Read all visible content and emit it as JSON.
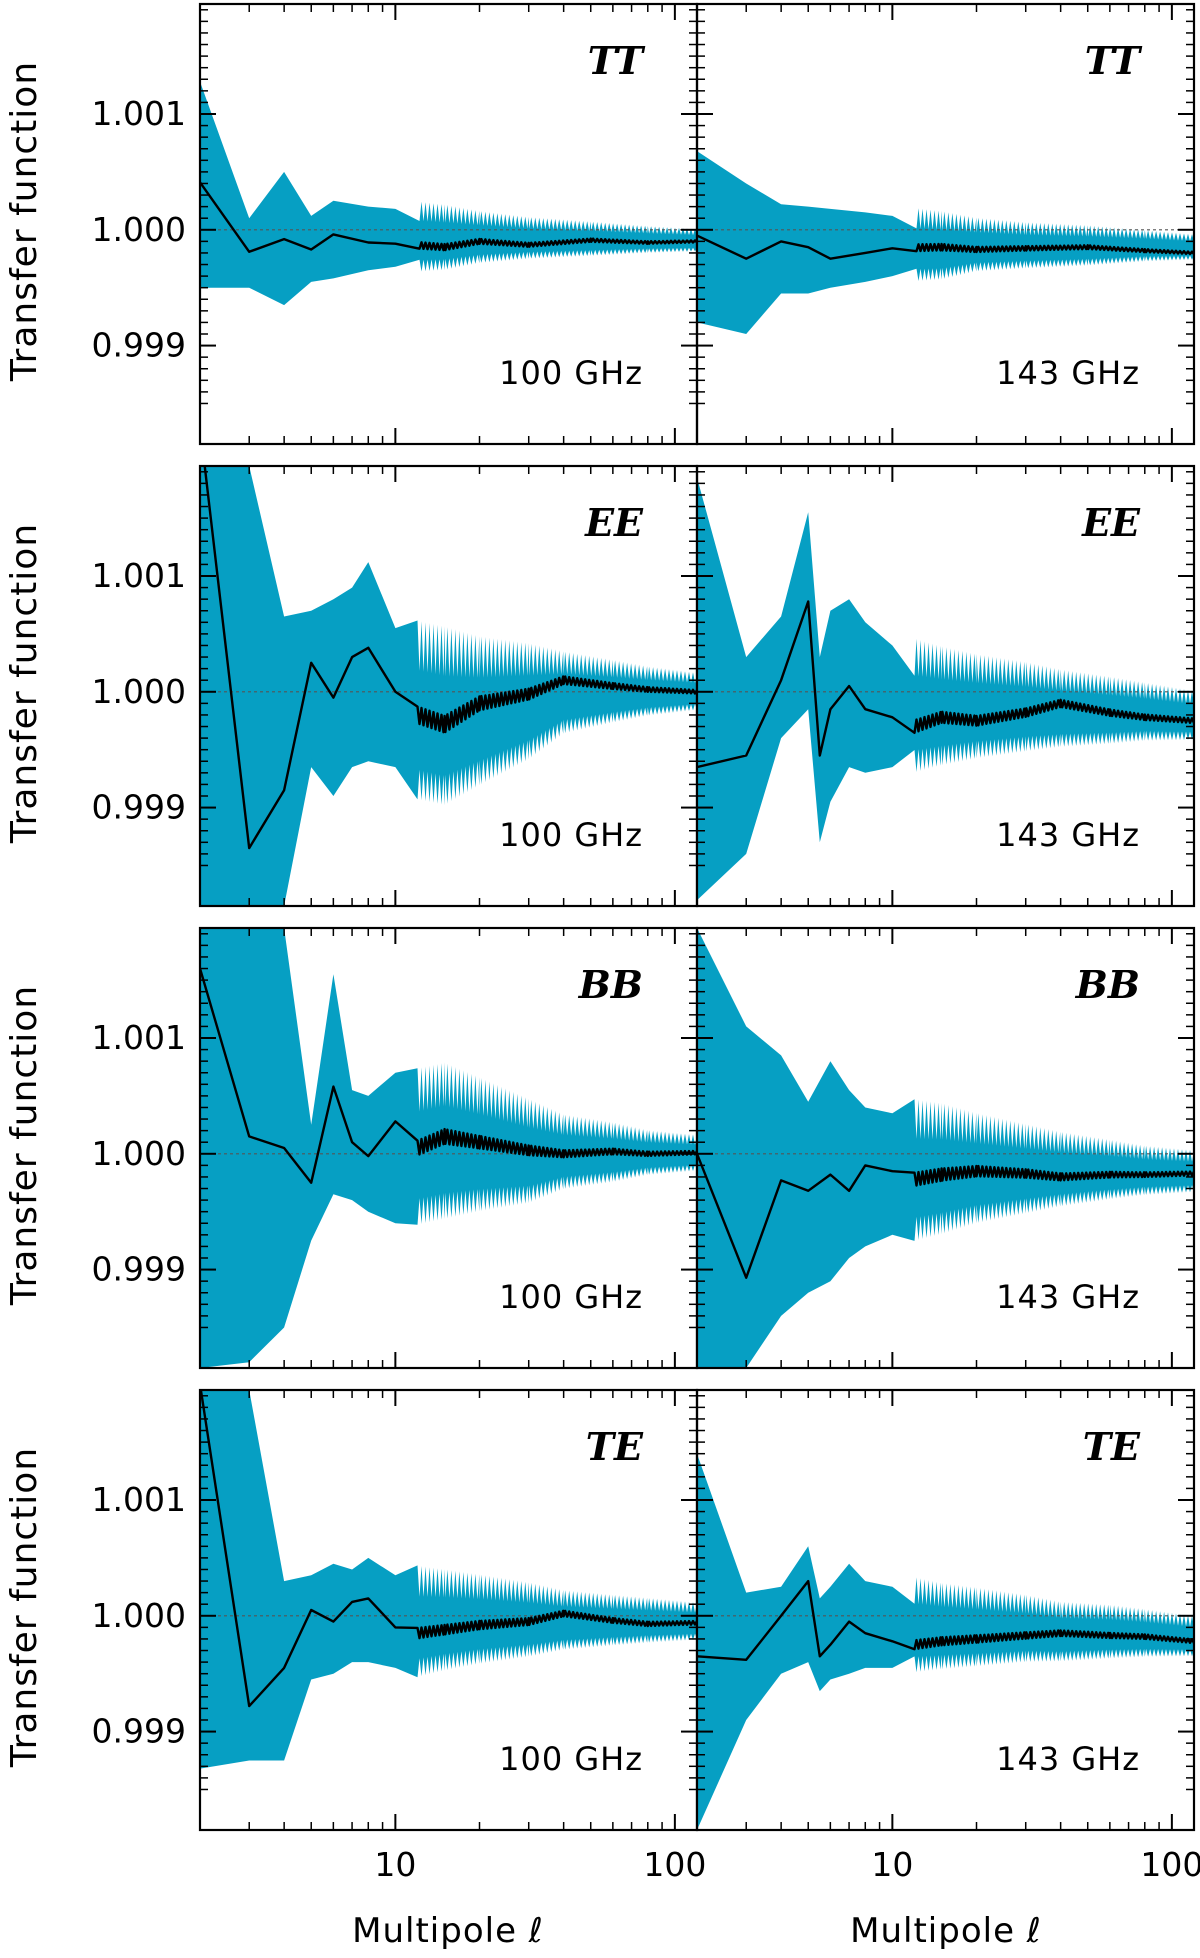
{
  "chart_data": {
    "type": "line",
    "layout": "4 rows x 2 columns",
    "x_scale": "log",
    "xlim": [
      2,
      120
    ],
    "ylim": [
      0.99815,
      1.00195
    ],
    "yticks": [
      0.999,
      1.0,
      1.001
    ],
    "ytick_labels": [
      "0.999",
      "1.000",
      "1.001"
    ],
    "xticks": [
      10,
      100
    ],
    "xtick_labels": [
      "10",
      "100"
    ],
    "ylabel": "Transfer function",
    "xlabel": "Multipole ℓ",
    "reference_line": 1.0,
    "colors": {
      "band": "#069fc3",
      "line": "#000000",
      "axes": "#000000",
      "reference": "#555555"
    },
    "rows": [
      "TT",
      "EE",
      "BB",
      "TE"
    ],
    "columns": [
      "100 GHz",
      "143 GHz"
    ],
    "panels": [
      {
        "row": 0,
        "col": 0,
        "spectrum": "TT",
        "frequency": "100 GHz",
        "x": [
          2,
          3,
          4,
          5,
          6,
          8,
          10,
          15,
          20,
          30,
          50,
          80,
          120
        ],
        "y": [
          1.00041,
          0.99981,
          0.99992,
          0.99983,
          0.99996,
          0.99989,
          0.99988,
          0.99985,
          0.9999,
          0.99987,
          0.99991,
          0.99989,
          0.9999
        ],
        "band_lower": [
          0.9995,
          0.9995,
          0.99935,
          0.99955,
          0.99958,
          0.99965,
          0.99968,
          0.9997,
          0.99975,
          0.99978,
          0.9998,
          0.99982,
          0.99983
        ],
        "band_upper": [
          1.00128,
          1.0001,
          1.0005,
          1.00012,
          1.00025,
          1.0002,
          1.00018,
          1.00014,
          1.0001,
          1.00006,
          1.00003,
          1.0,
          0.99998
        ]
      },
      {
        "row": 0,
        "col": 1,
        "spectrum": "TT",
        "frequency": "143 GHz",
        "x": [
          2,
          3,
          4,
          5,
          6,
          8,
          10,
          15,
          20,
          30,
          50,
          80,
          120
        ],
        "y": [
          0.99995,
          0.99975,
          0.9999,
          0.99985,
          0.99975,
          0.9998,
          0.99984,
          0.99985,
          0.99983,
          0.99984,
          0.99985,
          0.99982,
          0.9998
        ],
        "band_lower": [
          0.9992,
          0.9991,
          0.99945,
          0.99945,
          0.9995,
          0.99955,
          0.9996,
          0.99962,
          0.99968,
          0.9997,
          0.99972,
          0.99975,
          0.99976
        ],
        "band_upper": [
          1.00068,
          1.0004,
          1.00022,
          1.0002,
          1.00018,
          1.00015,
          1.00012,
          1.00008,
          1.00004,
          1.00001,
          0.99999,
          0.99996,
          0.99993
        ]
      },
      {
        "row": 1,
        "col": 0,
        "spectrum": "EE",
        "frequency": "100 GHz",
        "x": [
          2,
          3,
          4,
          5,
          6,
          7,
          8,
          10,
          12,
          15,
          20,
          30,
          40,
          60,
          80,
          120
        ],
        "y": [
          1.0023,
          0.99865,
          0.99915,
          1.00025,
          0.99995,
          1.0003,
          1.00038,
          1.0,
          0.9998,
          0.99972,
          0.9999,
          0.99998,
          1.0001,
          1.00005,
          1.00002,
          1.0
        ],
        "band_lower": [
          0.99815,
          0.99815,
          0.99815,
          0.99935,
          0.9991,
          0.99935,
          0.9994,
          0.99935,
          0.9992,
          0.99915,
          0.9993,
          0.9995,
          0.9997,
          0.99978,
          0.99983,
          0.99987
        ],
        "band_upper": [
          1.00195,
          1.00195,
          1.00065,
          1.0007,
          1.0008,
          1.0009,
          1.00112,
          1.00055,
          1.0004,
          1.00035,
          1.0003,
          1.00028,
          1.00025,
          1.0002,
          1.00016,
          1.00012
        ]
      },
      {
        "row": 1,
        "col": 1,
        "spectrum": "EE",
        "frequency": "143 GHz",
        "x": [
          2,
          3,
          4,
          5,
          5.5,
          6,
          7,
          8,
          10,
          12,
          15,
          20,
          30,
          40,
          60,
          80,
          120
        ],
        "y": [
          0.99935,
          0.99945,
          1.0001,
          1.00078,
          0.99945,
          0.99985,
          1.00005,
          0.99985,
          0.99978,
          0.9997,
          0.99978,
          0.99975,
          0.99982,
          0.9999,
          0.99982,
          0.99978,
          0.99975
        ],
        "band_lower": [
          0.9982,
          0.9986,
          0.9996,
          0.99985,
          0.9987,
          0.99905,
          0.99935,
          0.9993,
          0.99935,
          0.9994,
          0.99945,
          0.9995,
          0.99955,
          0.99958,
          0.9996,
          0.99962,
          0.99962
        ],
        "band_upper": [
          1.00185,
          1.0003,
          1.00065,
          1.00155,
          1.0003,
          1.0007,
          1.0008,
          1.0006,
          1.0004,
          1.0003,
          1.00025,
          1.0002,
          1.00015,
          1.0001,
          1.00005,
          1.00001,
          0.99995
        ]
      },
      {
        "row": 2,
        "col": 0,
        "spectrum": "BB",
        "frequency": "100 GHz",
        "x": [
          2,
          3,
          4,
          5,
          6,
          7,
          8,
          10,
          12,
          15,
          20,
          30,
          40,
          60,
          80,
          120
        ],
        "y": [
          1.0016,
          1.00015,
          1.00005,
          0.99975,
          1.00058,
          1.0001,
          0.99998,
          1.00028,
          1.00005,
          1.00015,
          1.0001,
          1.00003,
          1.0,
          1.00002,
          1.0,
          1.00001
        ],
        "band_lower": [
          0.99815,
          0.9982,
          0.9985,
          0.99925,
          0.99965,
          0.9996,
          0.9995,
          0.9994,
          0.9995,
          0.99955,
          0.9996,
          0.99965,
          0.99975,
          0.9998,
          0.99985,
          0.99988
        ],
        "band_upper": [
          1.00195,
          1.00195,
          1.00195,
          1.00025,
          1.00155,
          1.00055,
          1.0005,
          1.0007,
          1.00055,
          1.0006,
          1.0005,
          1.00035,
          1.00025,
          1.0002,
          1.00015,
          1.00012
        ]
      },
      {
        "row": 2,
        "col": 1,
        "spectrum": "BB",
        "frequency": "143 GHz",
        "x": [
          2,
          3,
          4,
          5,
          6,
          7,
          8,
          10,
          12,
          15,
          20,
          30,
          40,
          60,
          80,
          120
        ],
        "y": [
          1.0,
          0.99893,
          0.99977,
          0.99968,
          0.99982,
          0.99968,
          0.9999,
          0.99985,
          0.99978,
          0.99982,
          0.99985,
          0.99983,
          0.9998,
          0.99982,
          0.99982,
          0.99983
        ],
        "band_lower": [
          0.99815,
          0.99815,
          0.9986,
          0.9988,
          0.9989,
          0.9991,
          0.9992,
          0.9993,
          0.99935,
          0.9994,
          0.99948,
          0.99955,
          0.9996,
          0.99965,
          0.99968,
          0.9997
        ],
        "band_upper": [
          1.00195,
          1.0011,
          1.00085,
          1.00045,
          1.0008,
          1.00055,
          1.0004,
          1.00035,
          1.0003,
          1.00028,
          1.00022,
          1.00015,
          1.0001,
          1.00005,
          1.00001,
          0.99998
        ]
      },
      {
        "row": 3,
        "col": 0,
        "spectrum": "TE",
        "frequency": "100 GHz",
        "x": [
          2,
          3,
          4,
          5,
          6,
          7,
          8,
          10,
          12,
          15,
          20,
          30,
          40,
          60,
          80,
          120
        ],
        "y": [
          1.002,
          0.99922,
          0.99955,
          1.00005,
          0.99995,
          1.00012,
          1.00015,
          0.9999,
          0.99985,
          0.99988,
          0.99992,
          0.99995,
          1.00002,
          0.99996,
          0.99993,
          0.99994
        ],
        "band_lower": [
          0.99868,
          0.99875,
          0.99875,
          0.99945,
          0.9995,
          0.9996,
          0.9996,
          0.99955,
          0.99955,
          0.9996,
          0.99965,
          0.9997,
          0.99975,
          0.99978,
          0.9998,
          0.99982
        ],
        "band_upper": [
          1.00195,
          1.00195,
          1.0003,
          1.00035,
          1.00045,
          1.0004,
          1.0005,
          1.00035,
          1.0003,
          1.00028,
          1.00025,
          1.0002,
          1.00015,
          1.00012,
          1.0001,
          1.00007
        ]
      },
      {
        "row": 3,
        "col": 1,
        "spectrum": "TE",
        "frequency": "143 GHz",
        "x": [
          2,
          3,
          4,
          5,
          5.5,
          6,
          7,
          8,
          10,
          12,
          15,
          20,
          30,
          40,
          60,
          80,
          120
        ],
        "y": [
          0.99965,
          0.99962,
          1.0,
          1.0003,
          0.99965,
          0.99975,
          0.99995,
          0.99985,
          0.99978,
          0.99975,
          0.99978,
          0.9998,
          0.99983,
          0.99985,
          0.99983,
          0.99982,
          0.99978
        ],
        "band_lower": [
          0.99815,
          0.9991,
          0.9995,
          0.9996,
          0.99935,
          0.99945,
          0.9995,
          0.99955,
          0.99955,
          0.99958,
          0.9996,
          0.99962,
          0.99965,
          0.99965,
          0.99967,
          0.99968,
          0.99968
        ],
        "band_upper": [
          1.0014,
          1.0002,
          1.00025,
          1.0006,
          1.00015,
          1.00025,
          1.00045,
          1.0003,
          1.00025,
          1.00022,
          1.00018,
          1.00015,
          1.0001,
          1.00005,
          1.00003,
          1.0,
          0.99995
        ]
      }
    ]
  }
}
